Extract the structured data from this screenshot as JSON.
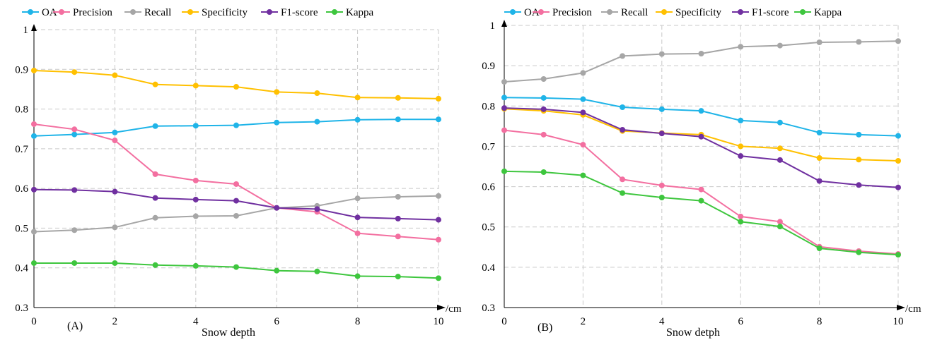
{
  "chart_data": [
    {
      "type": "line",
      "panel_label": "(A)",
      "xlabel": "Snow depth",
      "x_unit": "/cm",
      "x": [
        0,
        1,
        2,
        3,
        4,
        5,
        6,
        7,
        8,
        9,
        10
      ],
      "x_ticks": [
        0,
        2,
        4,
        6,
        8,
        10
      ],
      "xlim": [
        0,
        10
      ],
      "ylim": [
        0.3,
        1
      ],
      "y_ticks": [
        "0.3",
        "0.4",
        "0.5",
        "0.6",
        "0.7",
        "0.8",
        "0.9",
        "1"
      ],
      "grid": true,
      "legend_position": "top",
      "series": [
        {
          "name": "OA",
          "color": "#1fb4e8",
          "values": [
            0.732,
            0.736,
            0.741,
            0.757,
            0.758,
            0.759,
            0.766,
            0.768,
            0.773,
            0.774,
            0.774
          ]
        },
        {
          "name": "Precision",
          "color": "#f36fa0",
          "values": [
            0.762,
            0.749,
            0.721,
            0.636,
            0.62,
            0.611,
            0.551,
            0.541,
            0.487,
            0.479,
            0.471
          ]
        },
        {
          "name": "Recall",
          "color": "#a6a6a6",
          "values": [
            0.491,
            0.495,
            0.502,
            0.526,
            0.53,
            0.531,
            0.551,
            0.556,
            0.575,
            0.579,
            0.581
          ]
        },
        {
          "name": "Specificity",
          "color": "#ffc000",
          "values": [
            0.897,
            0.893,
            0.885,
            0.862,
            0.859,
            0.856,
            0.843,
            0.84,
            0.829,
            0.828,
            0.826
          ]
        },
        {
          "name": "F1-score",
          "color": "#7030a0",
          "values": [
            0.597,
            0.596,
            0.592,
            0.576,
            0.572,
            0.569,
            0.551,
            0.548,
            0.527,
            0.524,
            0.521
          ]
        },
        {
          "name": "Kappa",
          "color": "#3ec63e",
          "values": [
            0.412,
            0.412,
            0.412,
            0.407,
            0.405,
            0.402,
            0.393,
            0.391,
            0.379,
            0.378,
            0.374
          ]
        }
      ]
    },
    {
      "type": "line",
      "panel_label": "(B)",
      "xlabel": "Snow detph",
      "x_unit": "/cm",
      "x": [
        0,
        1,
        2,
        3,
        4,
        5,
        6,
        7,
        8,
        9,
        10
      ],
      "x_ticks": [
        0,
        2,
        4,
        6,
        8,
        10
      ],
      "xlim": [
        0,
        10
      ],
      "ylim": [
        0.3,
        1
      ],
      "y_ticks": [
        "0.3",
        "0.4",
        "0.5",
        "0.6",
        "0.7",
        "0.8",
        "0.9",
        "1"
      ],
      "grid": true,
      "legend_position": "top",
      "series": [
        {
          "name": "OA",
          "color": "#1fb4e8",
          "values": [
            0.821,
            0.82,
            0.817,
            0.797,
            0.792,
            0.788,
            0.764,
            0.759,
            0.734,
            0.729,
            0.726
          ]
        },
        {
          "name": "Precision",
          "color": "#f36fa0",
          "values": [
            0.74,
            0.729,
            0.704,
            0.618,
            0.603,
            0.593,
            0.526,
            0.513,
            0.451,
            0.44,
            0.433
          ]
        },
        {
          "name": "Recall",
          "color": "#a6a6a6",
          "values": [
            0.86,
            0.867,
            0.882,
            0.924,
            0.929,
            0.93,
            0.947,
            0.95,
            0.958,
            0.959,
            0.961
          ]
        },
        {
          "name": "Specificity",
          "color": "#ffc000",
          "values": [
            0.793,
            0.788,
            0.778,
            0.738,
            0.733,
            0.729,
            0.7,
            0.695,
            0.671,
            0.667,
            0.664
          ]
        },
        {
          "name": "F1-score",
          "color": "#7030a0",
          "values": [
            0.795,
            0.792,
            0.784,
            0.741,
            0.732,
            0.724,
            0.676,
            0.666,
            0.614,
            0.604,
            0.598
          ]
        },
        {
          "name": "Kappa",
          "color": "#3ec63e",
          "values": [
            0.638,
            0.636,
            0.628,
            0.584,
            0.573,
            0.565,
            0.513,
            0.501,
            0.447,
            0.437,
            0.431
          ]
        }
      ]
    }
  ]
}
